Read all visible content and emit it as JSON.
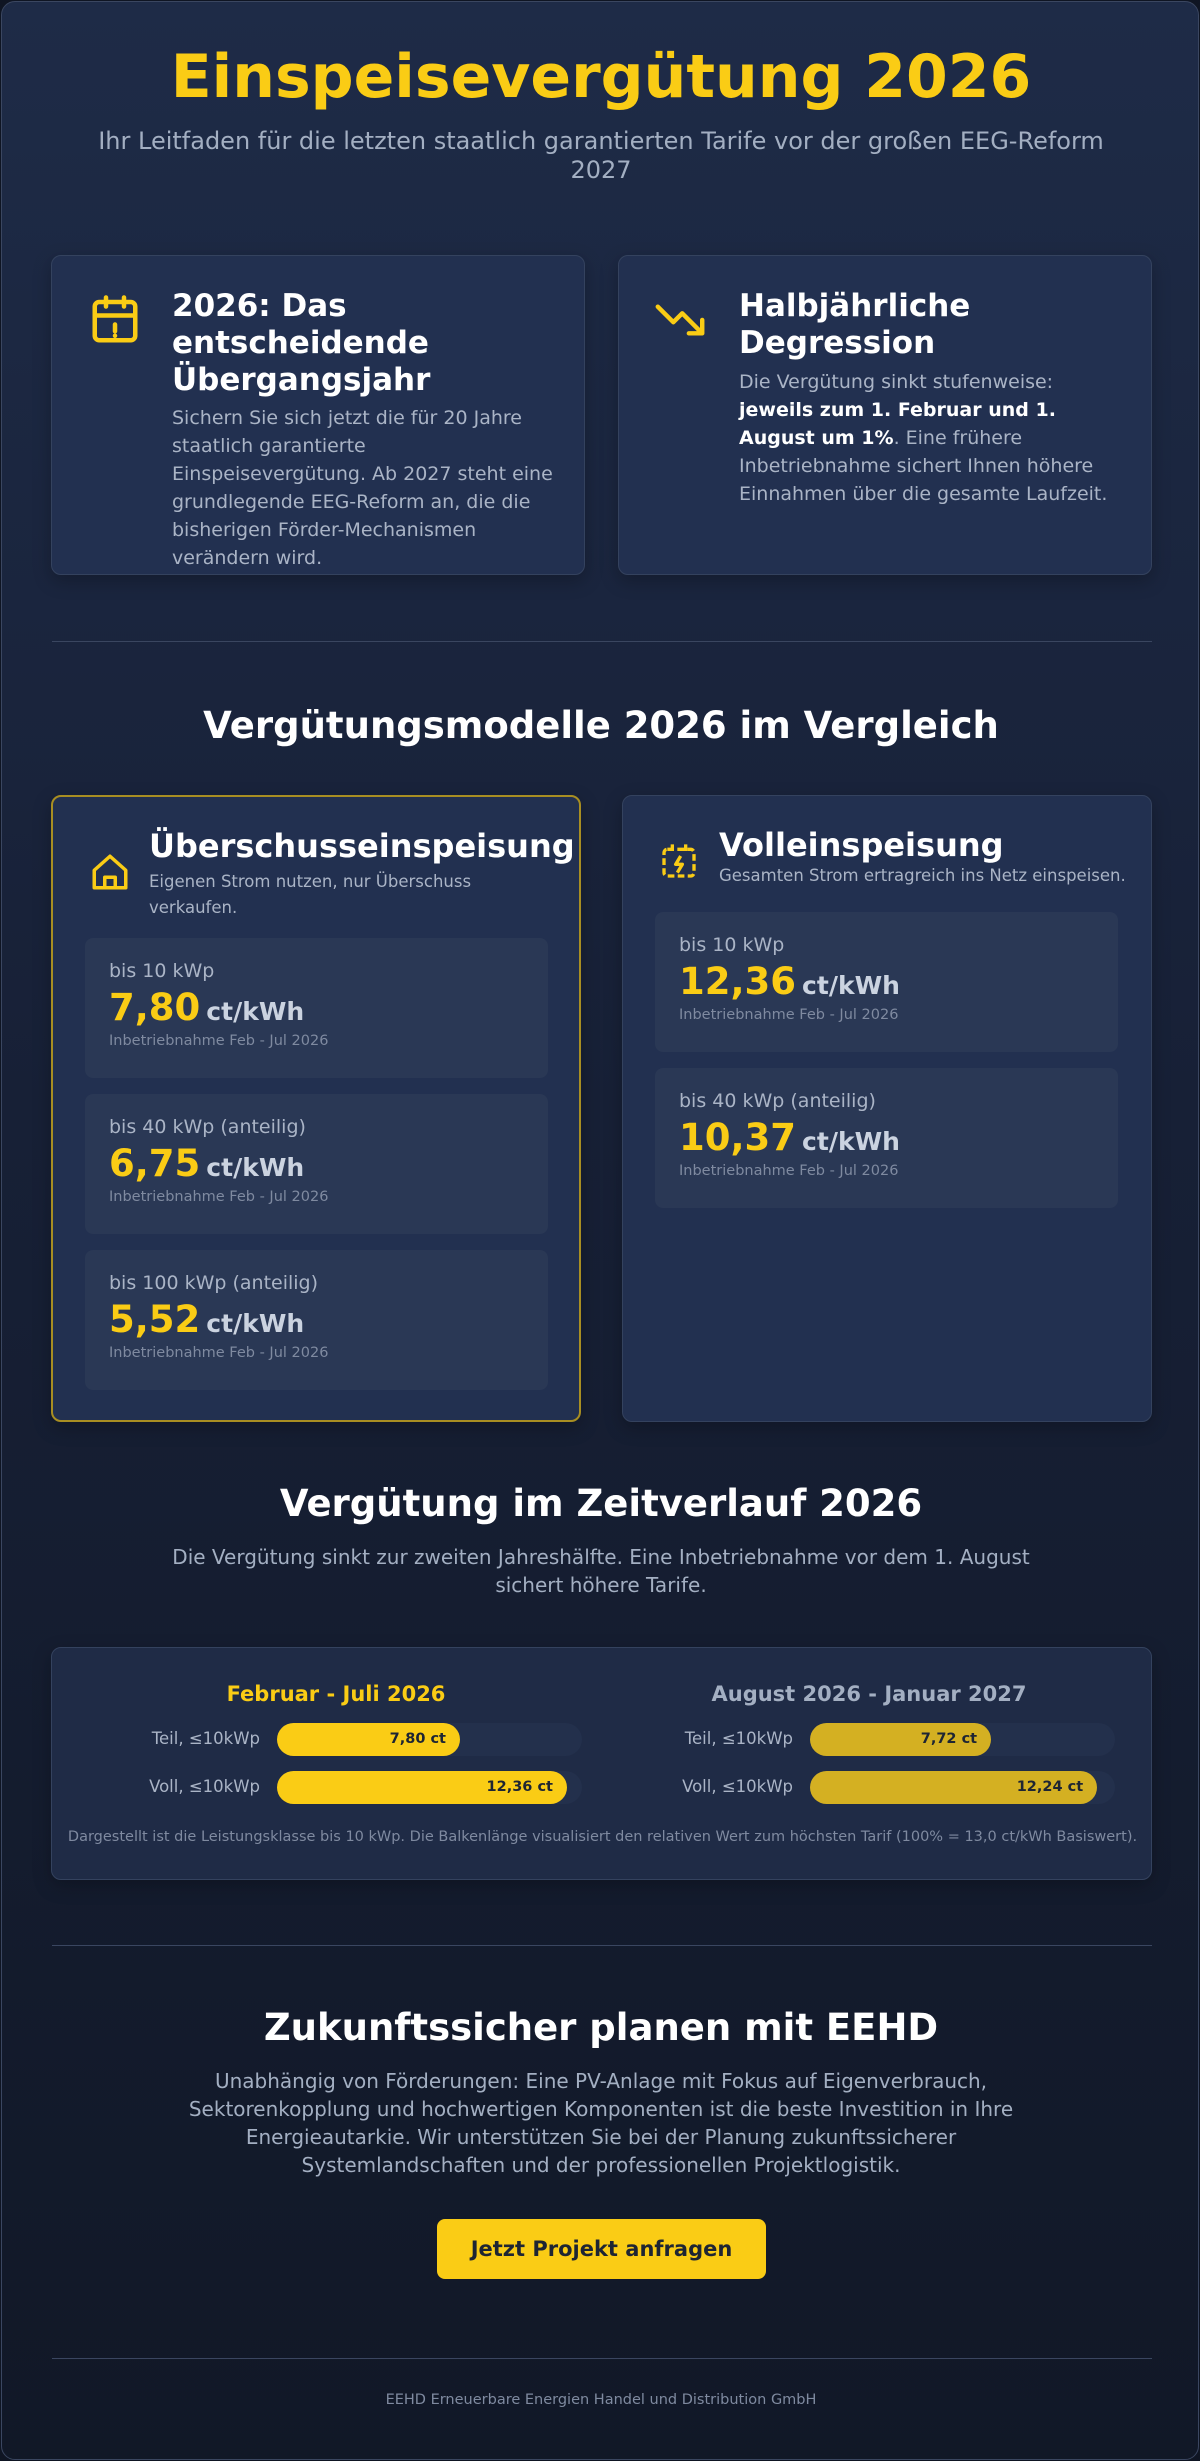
{
  "header": {
    "title": "Einspeisevergütung 2026",
    "subtitle": "Ihr Leitfaden für die letzten staatlich garantierten Tarife vor der großen EEG-Reform 2027"
  },
  "intro_cards": [
    {
      "title": "2026: Das entscheidende Übergangsjahr",
      "text": [
        "Sichern Sie sich jetzt die für 20 Jahre staatlich garantierte Einspeisevergütung. Ab 2027 steht eine grundlegende EEG-Reform an, die die bisherigen Förder-Mechanismen verändern wird."
      ]
    },
    {
      "title": "Halbjährliche Degression",
      "text": [
        "Die Vergütung sinkt stufenweise: ",
        "jeweils zum 1. Februar und 1. August um 1%",
        ". Eine frühere Inbetriebnahme sichert Ihnen höhere Einnahmen über die gesamte Laufzeit."
      ]
    }
  ],
  "models": {
    "title": "Vergütungsmodelle 2026 im Vergleich",
    "cards": [
      {
        "title": "Überschusseinspeisung",
        "subtitle": "Eigenen Strom nutzen, nur Überschuss verkaufen.",
        "tiles": [
          {
            "label": "bis 10 kWp",
            "value": "7,80",
            "unit": "ct/kWh",
            "note": "Inbetriebnahme Feb - Jul 2026"
          },
          {
            "label": "bis 40 kWp (anteilig)",
            "value": "6,75",
            "unit": "ct/kWh",
            "note": "Inbetriebnahme Feb - Jul 2026"
          },
          {
            "label": "bis 100 kWp (anteilig)",
            "value": "5,52",
            "unit": "ct/kWh",
            "note": "Inbetriebnahme Feb - Jul 2026"
          }
        ]
      },
      {
        "title": "Volleinspeisung",
        "subtitle": "Gesamten Strom ertragreich ins Netz einspeisen.",
        "tiles": [
          {
            "label": "bis 10 kWp",
            "value": "12,36",
            "unit": "ct/kWh",
            "note": "Inbetriebnahme Feb - Jul 2026"
          },
          {
            "label": "bis 40 kWp (anteilig)",
            "value": "10,37",
            "unit": "ct/kWh",
            "note": "Inbetriebnahme Feb - Jul 2026"
          }
        ]
      }
    ]
  },
  "timeline": {
    "title": "Vergütung im Zeitverlauf 2026",
    "text": "Die Vergütung sinkt zur zweiten Jahreshälfte. Eine Inbetriebnahme vor dem 1. August sichert höhere Tarife.",
    "scale_max": 13,
    "periods": [
      {
        "title": "Februar - Juli 2026",
        "rows": [
          {
            "label": "Teil, ≤10kWp",
            "value": 7.8,
            "value_label": "7,80 ct"
          },
          {
            "label": "Voll, ≤10kWp",
            "value": 12.36,
            "value_label": "12,36 ct"
          }
        ]
      },
      {
        "title": "August 2026 - Januar 2027",
        "rows": [
          {
            "label": "Teil, ≤10kWp",
            "value": 7.72,
            "value_label": "7,72 ct"
          },
          {
            "label": "Voll, ≤10kWp",
            "value": 12.24,
            "value_label": "12,24 ct"
          }
        ]
      }
    ],
    "note": "Dargestellt ist die Leistungsklasse bis 10 kWp. Die Balkenlänge visualisiert den relativen Wert zum höchsten Tarif (100% = 13,0 ct/kWh Basiswert)."
  },
  "cta": {
    "title": "Zukunftssicher planen mit EEHD",
    "text": "Unabhängig von Förderungen: Eine PV-Anlage mit Fokus auf Eigenverbrauch, Sektorenkopplung und hochwertigen Komponenten ist die beste Investition in Ihre Energieautarkie. Wir unterstützen Sie bei der Planung zukunftssicherer Systemlandschaften und der professionellen Projektlogistik.",
    "button": "Jetzt Projekt anfragen"
  },
  "footer": "EEHD Erneuerbare Energien Handel und Distribution GmbH"
}
